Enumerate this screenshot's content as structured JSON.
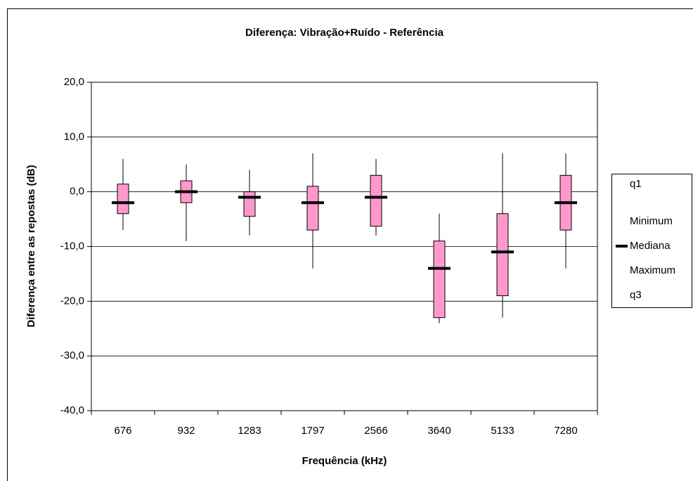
{
  "chart_data": {
    "type": "box",
    "title": "Diferença: Vibração+Ruído - Referência",
    "x_label": "Frequência (kHz)",
    "y_label": "Diferença entre as repostas (dB)",
    "categories": [
      "676",
      "932",
      "1283",
      "1797",
      "2566",
      "3640",
      "5133",
      "7280"
    ],
    "series": [
      {
        "name": "q1",
        "values": [
          -4,
          -2,
          -4.5,
          -7,
          -6.3,
          -23,
          -19,
          -7
        ]
      },
      {
        "name": "Minimum",
        "values": [
          -7,
          -9,
          -8,
          -14,
          -8,
          -24,
          -23,
          -14
        ]
      },
      {
        "name": "Mediana",
        "color": "#000000",
        "values": [
          -2,
          0,
          -1,
          -2,
          -1,
          -14,
          -11,
          -2
        ]
      },
      {
        "name": "Maximum",
        "values": [
          6,
          5,
          4,
          7,
          6,
          -4,
          7,
          7
        ]
      },
      {
        "name": "q3",
        "values": [
          1.4,
          2,
          0,
          1,
          3,
          -9,
          -4,
          3
        ]
      }
    ],
    "box_color": "#ff99cc",
    "ylim": [
      -40,
      20
    ],
    "yticks": [
      {
        "value": -40,
        "label": "-40,0"
      },
      {
        "value": -30,
        "label": "-30,0"
      },
      {
        "value": -20,
        "label": "-20,0"
      },
      {
        "value": -10,
        "label": "-10,0"
      },
      {
        "value": 0,
        "label": "0,0"
      },
      {
        "value": 10,
        "label": "10,0"
      },
      {
        "value": 20,
        "label": "20,0"
      }
    ],
    "grid": true,
    "legend": "right"
  }
}
